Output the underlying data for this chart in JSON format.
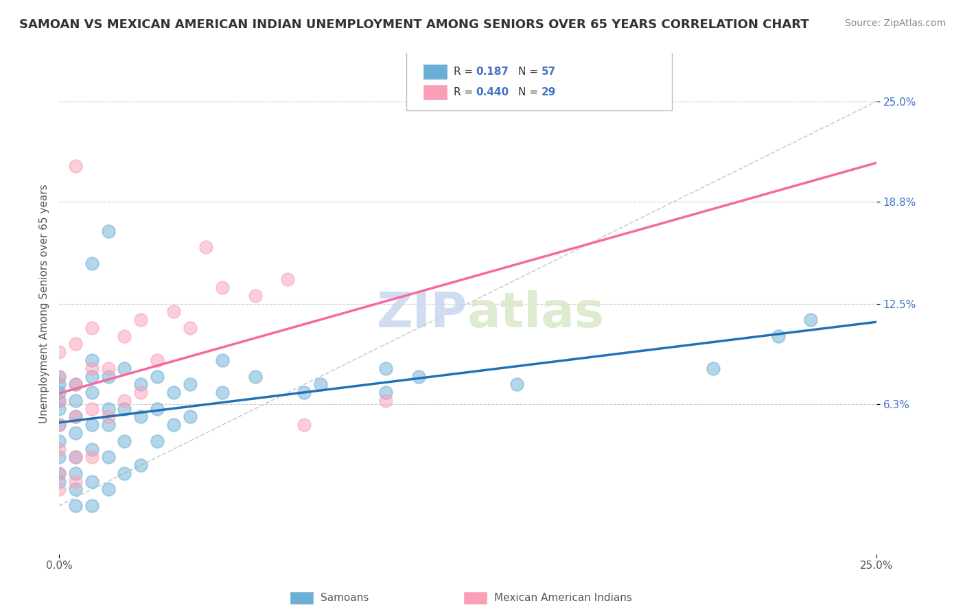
{
  "title": "SAMOAN VS MEXICAN AMERICAN INDIAN UNEMPLOYMENT AMONG SENIORS OVER 65 YEARS CORRELATION CHART",
  "source": "Source: ZipAtlas.com",
  "ylabel": "Unemployment Among Seniors over 65 years",
  "xlim": [
    0.0,
    25.0
  ],
  "ylim": [
    -3.0,
    28.0
  ],
  "xticklabels": [
    "0.0%",
    "25.0%"
  ],
  "ytick_positions": [
    6.3,
    12.5,
    18.8,
    25.0
  ],
  "ytick_labels": [
    "6.3%",
    "12.5%",
    "18.8%",
    "25.0%"
  ],
  "watermark_zip": "ZIP",
  "watermark_atlas": "atlas",
  "samoan_color": "#6baed6",
  "mexican_color": "#fa9fb5",
  "blue_line_color": "#2171b5",
  "pink_line_color": "#f768a1",
  "ref_line_color": "#cccccc",
  "samoan_x": [
    0.0,
    0.0,
    0.0,
    0.0,
    0.0,
    0.0,
    0.0,
    0.0,
    0.0,
    0.0,
    0.5,
    0.5,
    0.5,
    0.5,
    0.5,
    0.5,
    0.5,
    0.5,
    1.0,
    1.0,
    1.0,
    1.0,
    1.0,
    1.0,
    1.0,
    1.0,
    1.5,
    1.5,
    1.5,
    1.5,
    1.5,
    2.0,
    2.0,
    2.0,
    2.0,
    2.5,
    2.5,
    2.5,
    3.0,
    3.0,
    3.0,
    3.5,
    3.5,
    4.0,
    4.0,
    5.0,
    5.0,
    6.0,
    7.5,
    8.0,
    10.0,
    10.0,
    11.0,
    14.0,
    20.0,
    22.0,
    23.0,
    1.5
  ],
  "samoan_y": [
    2.0,
    1.5,
    3.0,
    4.0,
    5.0,
    6.0,
    6.5,
    7.0,
    7.5,
    8.0,
    0.0,
    1.0,
    2.0,
    3.0,
    4.5,
    5.5,
    6.5,
    7.5,
    0.0,
    1.5,
    3.5,
    5.0,
    7.0,
    8.0,
    9.0,
    15.0,
    1.0,
    3.0,
    5.0,
    6.0,
    8.0,
    2.0,
    4.0,
    6.0,
    8.5,
    2.5,
    5.5,
    7.5,
    4.0,
    6.0,
    8.0,
    5.0,
    7.0,
    5.5,
    7.5,
    7.0,
    9.0,
    8.0,
    7.0,
    7.5,
    7.0,
    8.5,
    8.0,
    7.5,
    8.5,
    10.5,
    11.5,
    17.0
  ],
  "mexican_x": [
    0.0,
    0.0,
    0.0,
    0.0,
    0.0,
    0.0,
    0.0,
    0.5,
    0.5,
    0.5,
    0.5,
    0.5,
    1.0,
    1.0,
    1.0,
    1.0,
    1.5,
    1.5,
    2.0,
    2.0,
    2.5,
    2.5,
    3.0,
    3.5,
    4.0,
    5.0,
    6.0,
    7.0,
    7.5,
    10.0,
    0.5,
    4.5
  ],
  "mexican_y": [
    1.0,
    2.0,
    3.5,
    5.0,
    6.5,
    8.0,
    9.5,
    1.5,
    3.0,
    5.5,
    7.5,
    10.0,
    3.0,
    6.0,
    8.5,
    11.0,
    5.5,
    8.5,
    6.5,
    10.5,
    7.0,
    11.5,
    9.0,
    12.0,
    11.0,
    13.5,
    13.0,
    14.0,
    5.0,
    6.5,
    21.0,
    16.0
  ]
}
